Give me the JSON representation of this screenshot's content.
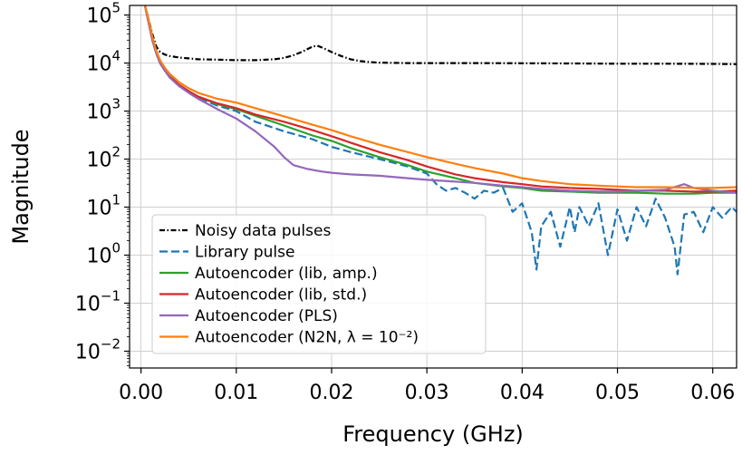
{
  "chart_data": {
    "type": "line",
    "title": "",
    "xlabel": "Frequency (GHz)",
    "ylabel": "Magnitude",
    "xlim": [
      -0.0012,
      0.0625
    ],
    "ylim_log10": [
      -2.35,
      5.2
    ],
    "yscale": "log",
    "grid": true,
    "legend_position": "lower-left",
    "x_ticks": [
      0.0,
      0.01,
      0.02,
      0.03,
      0.04,
      0.05,
      0.06
    ],
    "x_tick_labels": [
      "0.00",
      "0.01",
      "0.02",
      "0.03",
      "0.04",
      "0.05",
      "0.06"
    ],
    "y_ticks_exp": [
      -2,
      -1,
      0,
      1,
      2,
      3,
      4,
      5
    ],
    "y_tick_labels": [
      {
        "base": "10",
        "exp": "−2"
      },
      {
        "base": "10",
        "exp": "−1"
      },
      {
        "base": "10",
        "exp": "0"
      },
      {
        "base": "10",
        "exp": "1"
      },
      {
        "base": "10",
        "exp": "2"
      },
      {
        "base": "10",
        "exp": "3"
      },
      {
        "base": "10",
        "exp": "4"
      },
      {
        "base": "10",
        "exp": "5"
      }
    ],
    "series": [
      {
        "name": "Noisy data pulses",
        "color": "#000000",
        "dash": "dashdot",
        "x": [
          0.0003,
          0.0008,
          0.0012,
          0.0016,
          0.002,
          0.0025,
          0.003,
          0.004,
          0.005,
          0.006,
          0.008,
          0.01,
          0.012,
          0.014,
          0.015,
          0.016,
          0.017,
          0.018,
          0.0185,
          0.019,
          0.02,
          0.021,
          0.022,
          0.023,
          0.024,
          0.025,
          0.028,
          0.03,
          0.035,
          0.04,
          0.045,
          0.05,
          0.055,
          0.06,
          0.0625
        ],
        "y": [
          200000,
          80000,
          40000,
          22000,
          17000,
          15000,
          14000,
          13000,
          12500,
          12000,
          11800,
          11500,
          11500,
          12000,
          12800,
          14500,
          17500,
          22000,
          23000,
          21000,
          17000,
          14000,
          12000,
          11000,
          10500,
          10200,
          10000,
          10000,
          10000,
          9900,
          9800,
          9700,
          9700,
          9600,
          9500
        ]
      },
      {
        "name": "Library pulse",
        "color": "#1f77b4",
        "dash": "dashed",
        "x": [
          0.0003,
          0.0008,
          0.0012,
          0.0016,
          0.002,
          0.0025,
          0.003,
          0.004,
          0.005,
          0.006,
          0.008,
          0.01,
          0.012,
          0.015,
          0.018,
          0.02,
          0.022,
          0.025,
          0.028,
          0.03,
          0.031,
          0.032,
          0.033,
          0.034,
          0.035,
          0.036,
          0.037,
          0.038,
          0.039,
          0.04,
          0.041,
          0.0415,
          0.042,
          0.043,
          0.044,
          0.045,
          0.0455,
          0.046,
          0.047,
          0.048,
          0.049,
          0.05,
          0.051,
          0.052,
          0.053,
          0.054,
          0.055,
          0.056,
          0.0563,
          0.057,
          0.058,
          0.059,
          0.06,
          0.061,
          0.062,
          0.0625
        ],
        "y": [
          200000,
          80000,
          35000,
          18000,
          11000,
          7500,
          5500,
          3500,
          2500,
          1900,
          1300,
          1000,
          600,
          380,
          260,
          180,
          140,
          100,
          70,
          50,
          30,
          22,
          25,
          20,
          15,
          22,
          20,
          25,
          8,
          12,
          3,
          0.5,
          4,
          8,
          1.5,
          10,
          3,
          10,
          4,
          12,
          1,
          9,
          2,
          10,
          4,
          15,
          6,
          1.5,
          0.4,
          7,
          8,
          3,
          10,
          6,
          10,
          8
        ]
      },
      {
        "name": "Autoencoder (lib, amp.)",
        "color": "#2ca02c",
        "dash": "solid",
        "x": [
          0.0003,
          0.0008,
          0.0012,
          0.0016,
          0.002,
          0.0025,
          0.003,
          0.004,
          0.005,
          0.006,
          0.008,
          0.01,
          0.012,
          0.015,
          0.018,
          0.02,
          0.022,
          0.025,
          0.028,
          0.03,
          0.033,
          0.035,
          0.038,
          0.04,
          0.042,
          0.045,
          0.048,
          0.05,
          0.052,
          0.055,
          0.058,
          0.06,
          0.0625
        ],
        "y": [
          200000,
          70000,
          30000,
          16000,
          10000,
          7000,
          5200,
          3500,
          2600,
          2000,
          1400,
          1100,
          800,
          500,
          310,
          240,
          170,
          110,
          75,
          55,
          40,
          32,
          27,
          25,
          22,
          21,
          20,
          20,
          20,
          19,
          19,
          20,
          20
        ]
      },
      {
        "name": "Autoencoder (lib, std.)",
        "color": "#d62728",
        "dash": "solid",
        "x": [
          0.0003,
          0.0008,
          0.0012,
          0.0016,
          0.002,
          0.0025,
          0.003,
          0.004,
          0.005,
          0.006,
          0.008,
          0.01,
          0.012,
          0.015,
          0.018,
          0.02,
          0.022,
          0.025,
          0.028,
          0.03,
          0.033,
          0.035,
          0.038,
          0.04,
          0.042,
          0.045,
          0.048,
          0.05,
          0.052,
          0.055,
          0.058,
          0.06,
          0.0625
        ],
        "y": [
          200000,
          70000,
          30000,
          16000,
          10000,
          7000,
          5200,
          3500,
          2600,
          2000,
          1450,
          1150,
          850,
          600,
          400,
          300,
          220,
          140,
          95,
          70,
          48,
          40,
          33,
          30,
          27,
          25,
          24,
          23,
          22,
          22,
          21,
          21,
          22
        ]
      },
      {
        "name": "Autoencoder (PLS)",
        "color": "#9467bd",
        "dash": "solid",
        "x": [
          0.0003,
          0.0008,
          0.0012,
          0.0016,
          0.002,
          0.0025,
          0.003,
          0.004,
          0.005,
          0.006,
          0.008,
          0.01,
          0.012,
          0.014,
          0.015,
          0.016,
          0.0175,
          0.019,
          0.02,
          0.022,
          0.025,
          0.028,
          0.03,
          0.033,
          0.035,
          0.038,
          0.04,
          0.042,
          0.045,
          0.048,
          0.05,
          0.052,
          0.055,
          0.057,
          0.058,
          0.06,
          0.0625
        ],
        "y": [
          200000,
          70000,
          30000,
          16000,
          10000,
          7000,
          5000,
          3300,
          2400,
          1800,
          1100,
          700,
          380,
          180,
          110,
          75,
          62,
          55,
          52,
          48,
          45,
          40,
          37,
          34,
          32,
          28,
          26,
          24,
          22,
          21,
          21,
          22,
          23,
          30,
          25,
          22,
          20
        ]
      },
      {
        "name": "Autoencoder (N2N, λ = 10⁻²)",
        "color": "#ff7f0e",
        "dash": "solid",
        "x": [
          0.0003,
          0.0008,
          0.0012,
          0.0016,
          0.002,
          0.0025,
          0.003,
          0.004,
          0.005,
          0.006,
          0.008,
          0.01,
          0.012,
          0.015,
          0.018,
          0.02,
          0.022,
          0.025,
          0.028,
          0.03,
          0.033,
          0.035,
          0.038,
          0.04,
          0.042,
          0.045,
          0.048,
          0.05,
          0.052,
          0.055,
          0.058,
          0.06,
          0.0625
        ],
        "y": [
          200000,
          80000,
          35000,
          18000,
          11500,
          8000,
          6000,
          4000,
          3000,
          2400,
          1800,
          1500,
          1150,
          780,
          520,
          400,
          300,
          200,
          140,
          110,
          80,
          65,
          50,
          40,
          35,
          30,
          28,
          27,
          26,
          26,
          25,
          25,
          26
        ]
      }
    ]
  }
}
